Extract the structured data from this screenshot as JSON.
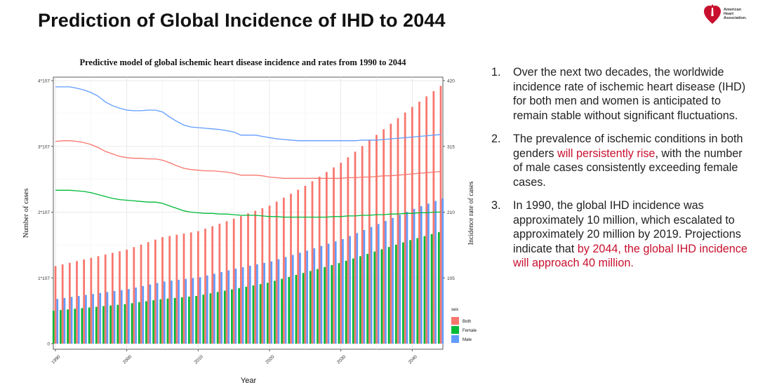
{
  "slide": {
    "title": "Prediction of Global Incidence of IHD to 2044",
    "logo_text": [
      "American",
      "Heart",
      "Association."
    ]
  },
  "points": [
    {
      "number": "1.",
      "segments": [
        {
          "text": "Over the next two decades, the worldwide incidence rate of ischemic heart disease (IHD) for both men and women is anticipated to remain stable without significant fluctuations.",
          "highlight": false
        }
      ]
    },
    {
      "number": "2.",
      "segments": [
        {
          "text": "The prevalence of ischemic conditions in both genders ",
          "highlight": false
        },
        {
          "text": "will persistently rise",
          "highlight": true
        },
        {
          "text": ", with the number of male cases consistently exceeding female cases.",
          "highlight": false
        }
      ]
    },
    {
      "number": "3.",
      "segments": [
        {
          "text": "In 1990, the global IHD incidence was approximately 10 million, which escalated to approximately 20 million by 2019. Projections indicate that ",
          "highlight": false
        },
        {
          "text": "by 2044, the global IHD incidence will approach 40 million.",
          "highlight": true
        }
      ]
    }
  ],
  "colors": {
    "highlight": "#c8102e",
    "both": "#F8766D",
    "female": "#00BA38",
    "male": "#619CFF",
    "brand_red": "#c8102e"
  },
  "chart_data": {
    "type": "bar",
    "title": "Predictive model of global ischemic heart disease incidence and rates from 1990 to 2044",
    "xlabel": "Year",
    "ylabel": "Number of cases",
    "y2label": "Incidence rate of cases",
    "xlim": [
      1990,
      2044
    ],
    "ylim": [
      0,
      40000000
    ],
    "y2lim": [
      0,
      420
    ],
    "x_ticks": [
      1990,
      2000,
      2010,
      2020,
      2030,
      2040
    ],
    "x_tick_labels": [
      "1990",
      "2000",
      "2010",
      "2020",
      "2030",
      "2040"
    ],
    "y_ticks": [
      0,
      10000000,
      20000000,
      30000000,
      40000000
    ],
    "y_tick_labels": [
      "0",
      "1*10^7",
      "2*10^7",
      "3*10^7",
      "4*10^7"
    ],
    "y2_ticks": [
      105,
      210,
      315,
      420
    ],
    "y2_tick_labels": [
      "105",
      "210",
      "315",
      "420"
    ],
    "legend": {
      "title": "sex",
      "position": "right-bottom",
      "entries": [
        "Both",
        "Female",
        "Male"
      ]
    },
    "grid": true,
    "years": [
      1990,
      1991,
      1992,
      1993,
      1994,
      1995,
      1996,
      1997,
      1998,
      1999,
      2000,
      2001,
      2002,
      2003,
      2004,
      2005,
      2006,
      2007,
      2008,
      2009,
      2010,
      2011,
      2012,
      2013,
      2014,
      2015,
      2016,
      2017,
      2018,
      2019,
      2020,
      2021,
      2022,
      2023,
      2024,
      2025,
      2026,
      2027,
      2028,
      2029,
      2030,
      2031,
      2032,
      2033,
      2034,
      2035,
      2036,
      2037,
      2038,
      2039,
      2040,
      2041,
      2042,
      2043,
      2044
    ],
    "bar_series": [
      {
        "name": "Both",
        "values": [
          11800000,
          12050000,
          12300000,
          12550000,
          12800000,
          13050000,
          13300000,
          13550000,
          13800000,
          14050000,
          14300000,
          14680000,
          15060000,
          15440000,
          15820000,
          16200000,
          16380000,
          16560000,
          16740000,
          16920000,
          17100000,
          17480000,
          17860000,
          18240000,
          18620000,
          19000000,
          19400000,
          19800000,
          20200000,
          20600000,
          21000000,
          21600000,
          22200000,
          22800000,
          23400000,
          24000000,
          24700000,
          25400000,
          26100000,
          26800000,
          27500000,
          28350000,
          29200000,
          30050000,
          30900000,
          31750000,
          32600000,
          33450000,
          34300000,
          35150000,
          36000000,
          36800000,
          37600000,
          38400000,
          39200000
        ]
      },
      {
        "name": "Female",
        "values": [
          5000000,
          5100000,
          5200000,
          5300000,
          5400000,
          5500000,
          5600000,
          5700000,
          5800000,
          5900000,
          6000000,
          6150000,
          6300000,
          6450000,
          6600000,
          6750000,
          6850000,
          6950000,
          7050000,
          7150000,
          7250000,
          7450000,
          7650000,
          7850000,
          8050000,
          8250000,
          8450000,
          8650000,
          8850000,
          9050000,
          9250000,
          9550000,
          9850000,
          10150000,
          10450000,
          10750000,
          11050000,
          11350000,
          11650000,
          11950000,
          12250000,
          12600000,
          12950000,
          13300000,
          13650000,
          14000000,
          14350000,
          14700000,
          15050000,
          15400000,
          15750000,
          16050000,
          16350000,
          16650000,
          16950000
        ]
      },
      {
        "name": "Male",
        "values": [
          6800000,
          6950000,
          7100000,
          7250000,
          7400000,
          7550000,
          7700000,
          7850000,
          8000000,
          8150000,
          8300000,
          8530000,
          8760000,
          8990000,
          9220000,
          9450000,
          9580000,
          9710000,
          9840000,
          9970000,
          10100000,
          10360000,
          10620000,
          10880000,
          11140000,
          11400000,
          11620000,
          11840000,
          12060000,
          12280000,
          12500000,
          12830000,
          13160000,
          13490000,
          13820000,
          14150000,
          14500000,
          14850000,
          15200000,
          15550000,
          15900000,
          16360000,
          16820000,
          17280000,
          17740000,
          18200000,
          18660000,
          19120000,
          19580000,
          20040000,
          20500000,
          20900000,
          21300000,
          21700000,
          22100000
        ]
      }
    ],
    "rate_series": [
      {
        "name": "Male",
        "values": [
          410,
          410,
          410,
          408,
          405,
          401,
          395,
          386,
          380,
          376,
          373,
          372,
          372,
          373,
          373,
          370,
          362,
          355,
          349,
          346,
          345,
          344,
          343,
          342,
          340,
          338,
          333,
          333,
          333,
          331,
          329,
          327,
          326,
          325,
          324,
          324,
          324,
          324,
          324,
          324,
          324,
          324,
          324,
          325,
          325,
          325,
          326,
          327,
          328,
          329,
          330,
          331,
          332,
          333,
          334
        ]
      },
      {
        "name": "Both",
        "values": [
          323,
          324,
          324,
          323,
          321,
          318,
          313,
          307,
          303,
          299,
          297,
          296,
          296,
          295,
          295,
          293,
          289,
          284,
          280,
          278,
          277,
          276,
          276,
          275,
          274,
          272,
          269,
          269,
          269,
          268,
          266,
          265,
          264,
          264,
          264,
          264,
          264,
          264,
          264,
          264,
          264,
          265,
          265,
          266,
          266,
          267,
          268,
          268,
          269,
          270,
          271,
          272,
          273,
          274,
          275
        ]
      },
      {
        "name": "Female",
        "values": [
          245,
          245,
          245,
          244,
          243,
          241,
          238,
          235,
          232,
          230,
          229,
          228,
          227,
          226,
          226,
          224,
          220,
          216,
          212,
          210,
          209,
          208,
          208,
          207,
          207,
          206,
          205,
          205,
          205,
          204,
          203,
          203,
          202,
          202,
          202,
          202,
          202,
          202,
          202,
          203,
          203,
          204,
          204,
          205,
          205,
          206,
          206,
          207,
          207,
          208,
          208,
          209,
          209,
          210,
          210
        ]
      }
    ]
  }
}
